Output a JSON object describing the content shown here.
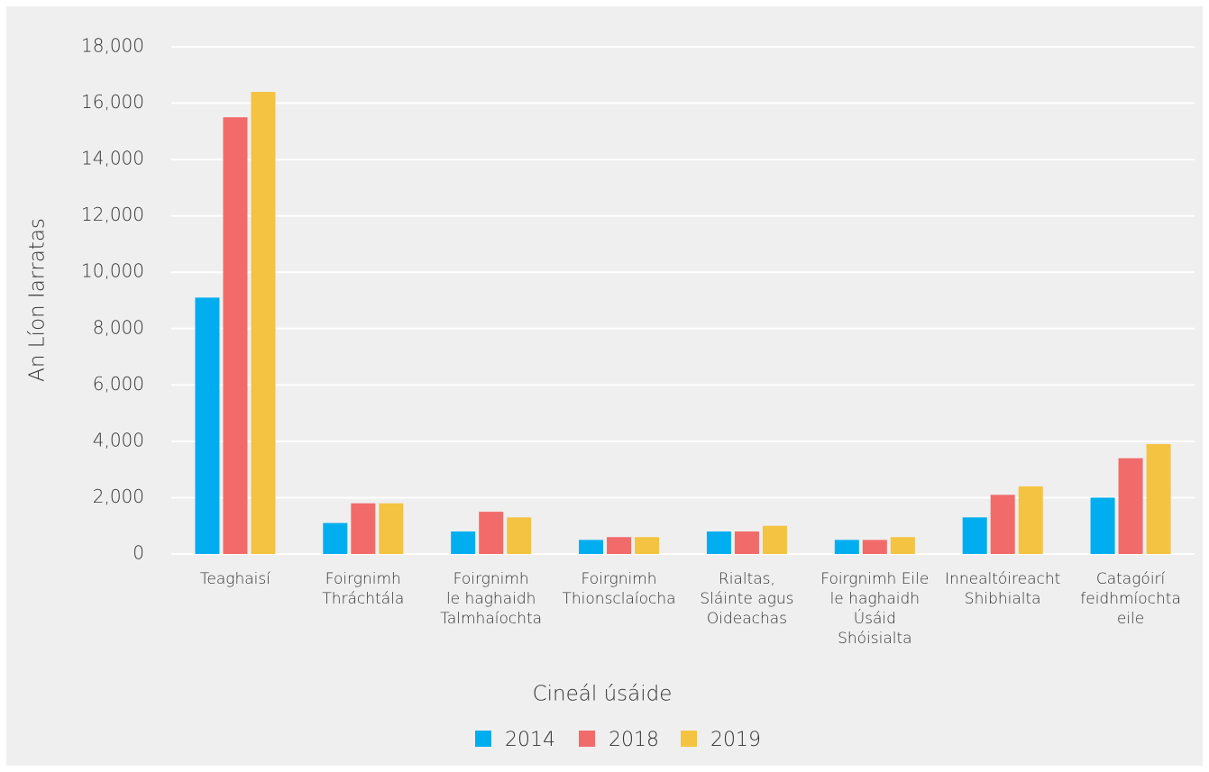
{
  "chart_data": {
    "type": "bar",
    "y_label": "An Líon Iarratas",
    "x_label": "Cineál úsáide",
    "categories": [
      [
        "Teaghaisí"
      ],
      [
        "Foirgnimh",
        "Thráchtála"
      ],
      [
        "Foirgnimh",
        "le haghaidh",
        "Talmhaíochta"
      ],
      [
        "Foirgnimh",
        "Thionsclaíocha"
      ],
      [
        "Rialtas,",
        "Sláinte agus",
        "Oideachas"
      ],
      [
        "Foirgnimh Eile",
        "le haghaidh",
        "Úsáid",
        "Shóisialta"
      ],
      [
        "Innealtóireacht",
        "Shibhialta"
      ],
      [
        "Catagóirí",
        "feidhmíochta",
        "eile"
      ]
    ],
    "series": [
      {
        "name": "2014",
        "color": "#00aeef",
        "values": [
          9100,
          1100,
          800,
          500,
          800,
          500,
          1300,
          2000
        ]
      },
      {
        "name": "2018",
        "color": "#f26b6b",
        "values": [
          15500,
          1800,
          1500,
          600,
          800,
          500,
          2100,
          3400
        ]
      },
      {
        "name": "2019",
        "color": "#f5c342",
        "values": [
          16400,
          1800,
          1300,
          600,
          1000,
          600,
          2400,
          3900
        ]
      }
    ],
    "ylim": [
      0,
      18000
    ],
    "yticks": [
      0,
      {
        "value": 2000,
        "label": "2,000"
      },
      {
        "value": 4000,
        "label": "4,000"
      },
      {
        "value": 6000,
        "label": "6,000"
      },
      {
        "value": 8000,
        "label": "8,000"
      },
      {
        "value": 10000,
        "label": "10,000"
      },
      {
        "value": 12000,
        "label": "12,000"
      },
      {
        "value": 14000,
        "label": "14,000"
      },
      {
        "value": 16000,
        "label": "16,000"
      },
      {
        "value": 18000,
        "label": "18,000"
      }
    ],
    "grid": true,
    "legend": "bottom"
  }
}
